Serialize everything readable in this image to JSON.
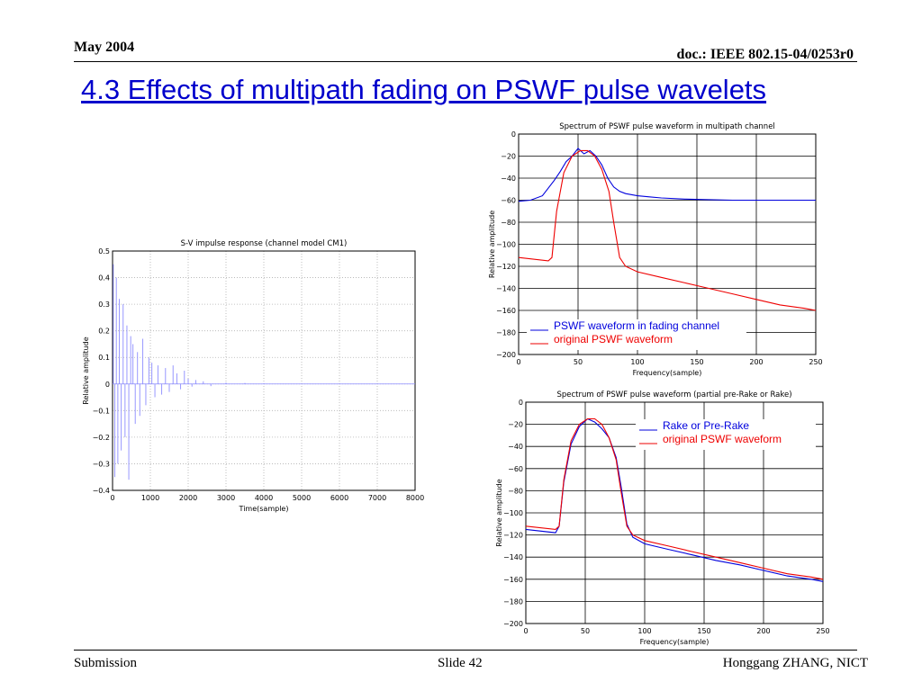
{
  "header": {
    "date": "May 2004",
    "doc_id": "doc.: IEEE 802.15-04/0253r0"
  },
  "slide_title": "4.3 Effects of multipath fading on PSWF pulse wavelets",
  "footer": {
    "left": "Submission",
    "center": "Slide 42",
    "right": "Honggang ZHANG, NICT"
  },
  "colors": {
    "title": "#0000cc",
    "blue": "#0000dd",
    "red": "#ee0000",
    "impulse": "#8c8cff",
    "grid": "#b0b0b0"
  },
  "chart_data": [
    {
      "type": "line",
      "title": "S-V impulse response (channel model CM1)",
      "xlabel": "Time(sample)",
      "ylabel": "Relative amplitude",
      "xlim": [
        0,
        8000
      ],
      "ylim": [
        -0.4,
        0.5
      ],
      "xticks": [
        "0",
        "1000",
        "2000",
        "3000",
        "4000",
        "5000",
        "6000",
        "7000",
        "8000"
      ],
      "yticks": [
        "0.5",
        "0.4",
        "0.3",
        "0.2",
        "0.1",
        "0",
        "−0.1",
        "−0.2",
        "−0.3",
        "−0.4"
      ],
      "grid": true,
      "series": [
        {
          "values_description": "stem",
          "x": [
            20,
            60,
            100,
            140,
            180,
            230,
            280,
            330,
            380,
            430,
            480,
            540,
            600,
            660,
            720,
            800,
            880,
            960,
            1040,
            1120,
            1200,
            1300,
            1400,
            1500,
            1600,
            1700,
            1800,
            1900,
            2000,
            2100,
            2200,
            2400,
            2600,
            3000,
            3500,
            4000
          ],
          "y": [
            0.45,
            -0.35,
            0.4,
            -0.3,
            0.32,
            -0.25,
            0.3,
            -0.2,
            0.22,
            -0.36,
            0.18,
            0.15,
            -0.15,
            0.12,
            -0.12,
            0.17,
            -0.08,
            0.1,
            0.08,
            -0.05,
            0.07,
            -0.04,
            0.06,
            -0.03,
            0.07,
            0.04,
            -0.02,
            0.05,
            0.02,
            -0.01,
            0.015,
            0.01,
            -0.008,
            0.005,
            0.004,
            0.002
          ]
        }
      ]
    },
    {
      "type": "line",
      "title": "Spectrum of PSWF pulse waveform in multipath channel",
      "xlabel": "Frequency(sample)",
      "ylabel": "Relative amplitude",
      "xlim": [
        0,
        250
      ],
      "ylim": [
        -200,
        0
      ],
      "xticks": [
        "0",
        "50",
        "100",
        "150",
        "200",
        "250"
      ],
      "yticks": [
        "0",
        "−20",
        "−40",
        "−60",
        "−80",
        "−100",
        "−120",
        "−140",
        "−160",
        "−180",
        "−200"
      ],
      "grid": true,
      "legend_position": "bottom-left",
      "series": [
        {
          "name": "PSWF waveform in fading channel",
          "color": "#0000dd",
          "x": [
            0,
            10,
            20,
            30,
            35,
            40,
            45,
            50,
            55,
            60,
            65,
            70,
            75,
            80,
            85,
            90,
            100,
            110,
            120,
            140,
            160,
            180,
            200,
            220,
            240,
            250
          ],
          "y": [
            -61,
            -60,
            -56,
            -42,
            -34,
            -25,
            -20,
            -13,
            -18,
            -15,
            -20,
            -28,
            -40,
            -48,
            -52,
            -54,
            -56,
            -57,
            -58,
            -59,
            -59.5,
            -60,
            -60,
            -60,
            -60,
            -60
          ]
        },
        {
          "name": "original PSWF waveform",
          "color": "#ee0000",
          "x": [
            0,
            25,
            28,
            32,
            38,
            45,
            52,
            58,
            64,
            70,
            76,
            80,
            85,
            90,
            100,
            120,
            140,
            160,
            180,
            200,
            220,
            240,
            250
          ],
          "y": [
            -112,
            -115,
            -112,
            -70,
            -35,
            -20,
            -15,
            -15,
            -20,
            -32,
            -52,
            -80,
            -112,
            -120,
            -125,
            -130,
            -135,
            -140,
            -145,
            -150,
            -155,
            -158,
            -160
          ]
        }
      ]
    },
    {
      "type": "line",
      "title": "Spectrum of PSWF pulse waveform (partial pre-Rake or Rake)",
      "xlabel": "Frequency(sample)",
      "ylabel": "Relative amplitude",
      "xlim": [
        0,
        250
      ],
      "ylim": [
        -200,
        0
      ],
      "xticks": [
        "0",
        "50",
        "100",
        "150",
        "200",
        "250"
      ],
      "yticks": [
        "0",
        "−20",
        "−40",
        "−60",
        "−80",
        "−100",
        "−120",
        "−140",
        "−160",
        "−180",
        "−200"
      ],
      "grid": true,
      "legend_position": "top-right",
      "series": [
        {
          "name": "Rake or Pre-Rake",
          "color": "#0000dd",
          "x": [
            0,
            25,
            28,
            32,
            38,
            45,
            52,
            58,
            64,
            70,
            76,
            80,
            85,
            90,
            100,
            120,
            140,
            160,
            180,
            200,
            220,
            240,
            250
          ],
          "y": [
            -115,
            -118,
            -112,
            -72,
            -38,
            -22,
            -15,
            -18,
            -24,
            -32,
            -50,
            -75,
            -110,
            -122,
            -128,
            -133,
            -138,
            -143,
            -147,
            -152,
            -157,
            -160,
            -162
          ]
        },
        {
          "name": "original PSWF waveform",
          "color": "#ee0000",
          "x": [
            0,
            25,
            28,
            32,
            38,
            45,
            52,
            58,
            64,
            70,
            76,
            80,
            85,
            90,
            100,
            120,
            140,
            160,
            180,
            200,
            220,
            240,
            250
          ],
          "y": [
            -112,
            -115,
            -112,
            -70,
            -35,
            -20,
            -15,
            -15,
            -20,
            -32,
            -52,
            -80,
            -112,
            -120,
            -125,
            -130,
            -135,
            -140,
            -145,
            -150,
            -155,
            -158,
            -160
          ]
        }
      ]
    }
  ]
}
